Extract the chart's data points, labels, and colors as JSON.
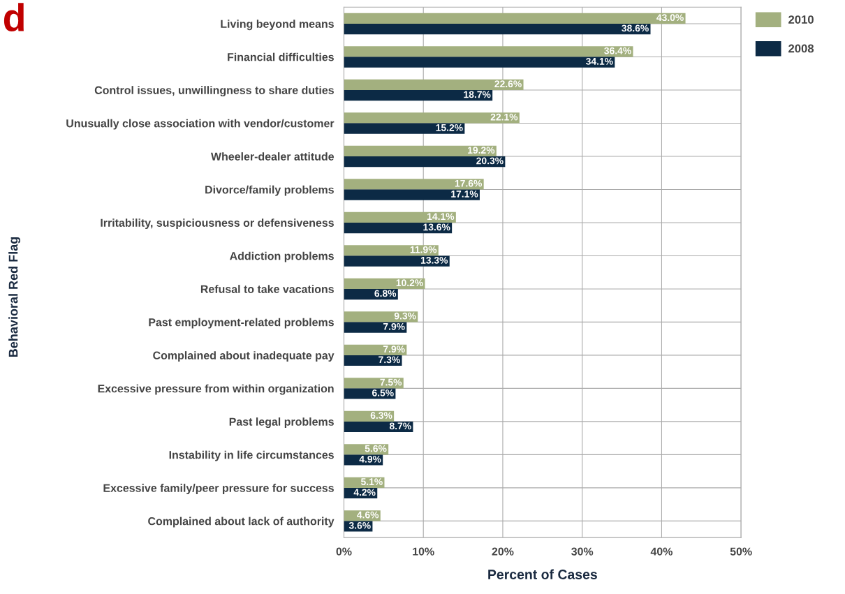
{
  "chart_data": {
    "type": "bar",
    "orientation": "horizontal",
    "ylabel": "Behavioral Red Flag",
    "xlabel": "Percent of Cases",
    "annotations": [
      "d"
    ],
    "categories": [
      "Living beyond means",
      "Financial difficulties",
      "Control issues, unwillingness to share duties",
      "Unusually close association with vendor/customer",
      "Wheeler-dealer attitude",
      "Divorce/family problems",
      "Irritability, suspiciousness or defensiveness",
      "Addiction problems",
      "Refusal to take vacations",
      "Past employment-related problems",
      "Complained about inadequate pay",
      "Excessive pressure from within organization",
      "Past legal problems",
      "Instability in life circumstances",
      "Excessive family/peer pressure for success",
      "Complained about lack of authority"
    ],
    "series": [
      {
        "name": "2010",
        "color": "#a3b07f",
        "values": [
          43.0,
          36.4,
          22.6,
          22.1,
          19.2,
          17.6,
          14.1,
          11.9,
          10.2,
          9.3,
          7.9,
          7.5,
          6.3,
          5.6,
          5.1,
          4.6
        ],
        "value_labels": [
          "43.0%",
          "36.4%",
          "22.6%",
          "22.1%",
          "19.2%",
          "17.6%",
          "14.1%",
          "11.9%",
          "10.2%",
          "9.3%",
          "7.9%",
          "7.5%",
          "6.3%",
          "5.6%",
          "5.1%",
          "4.6%"
        ]
      },
      {
        "name": "2008",
        "color": "#0c2a45",
        "values": [
          38.6,
          34.1,
          18.7,
          15.2,
          20.3,
          17.1,
          13.6,
          13.3,
          6.8,
          7.9,
          7.3,
          6.5,
          8.7,
          4.9,
          4.2,
          3.6
        ],
        "value_labels": [
          "38.6%",
          "34.1%",
          "18.7%",
          "15.2%",
          "20.3%",
          "17.1%",
          "13.6%",
          "13.3%",
          "6.8%",
          "7.9%",
          "7.3%",
          "6.5%",
          "8.7%",
          "4.9%",
          "4.2%",
          "3.6%"
        ]
      }
    ],
    "xlim": [
      0,
      50
    ],
    "xticks": [
      {
        "value": 0,
        "label": "0%"
      },
      {
        "value": 10,
        "label": "10%"
      },
      {
        "value": 20,
        "label": "20%"
      },
      {
        "value": 30,
        "label": "30%"
      },
      {
        "value": 40,
        "label": "40%"
      },
      {
        "value": 50,
        "label": "50%"
      }
    ],
    "grid": true,
    "legend": "top right"
  }
}
